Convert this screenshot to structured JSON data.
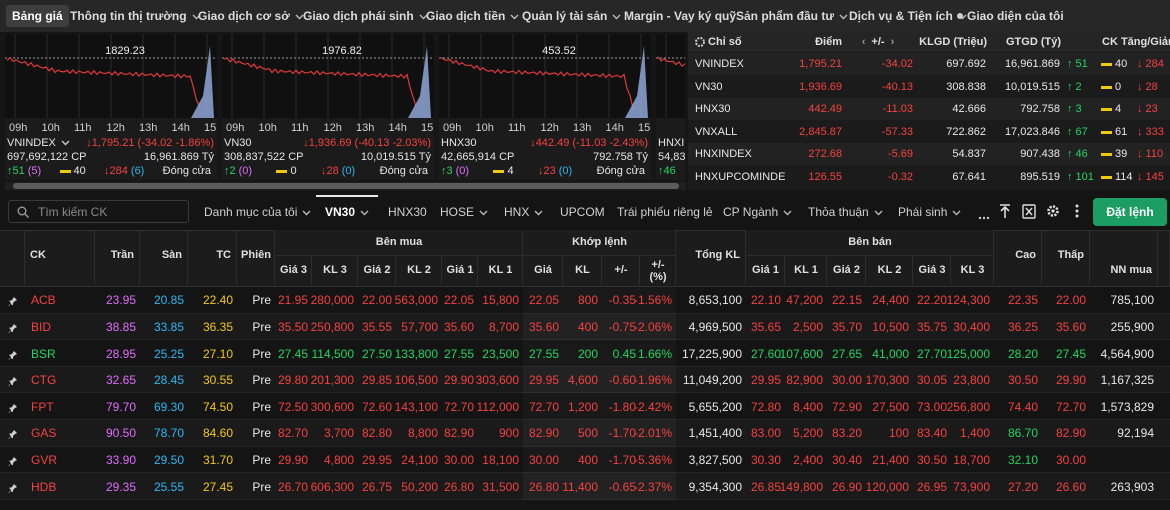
{
  "nav": {
    "active": 0,
    "items": [
      {
        "label": "Bảng giá"
      },
      {
        "label": "Thông tin thị trường",
        "menu": true
      },
      {
        "label": "Giao dịch cơ sở",
        "menu": true
      },
      {
        "label": "Giao dịch phái sinh",
        "menu": true
      },
      {
        "label": "Giao dịch tiền",
        "menu": true
      },
      {
        "label": "Quản lý tài sản",
        "menu": true
      },
      {
        "label": "Margin - Vay ký quỹ"
      },
      {
        "label": "Sản phẩm đầu tư",
        "menu": true
      },
      {
        "label": "Dịch vụ & Tiện ích",
        "menu": true
      },
      {
        "label": "Giao diện của tôi"
      }
    ]
  },
  "market_cards": {
    "times": [
      "09h",
      "10h",
      "11h",
      "12h",
      "13h",
      "14h",
      "15h"
    ],
    "cards": [
      {
        "name": "VNINDEX",
        "ref": "1829.23",
        "price": "↓1,795.21 (-34.02 -1.86%)",
        "volume": "697,692,122 CP",
        "value": "16,961.869 Tỷ",
        "up": "↑51",
        "up_ceil": "(5)",
        "flat": "40",
        "down": "↓284",
        "down_floor": "(6)",
        "status": "Đóng cửa"
      },
      {
        "name": "VN30",
        "ref": "1976.82",
        "price": "↓1,936.69 (-40.13 -2.03%)",
        "volume": "308,837,522 CP",
        "value": "10,019.515 Tỷ",
        "up": "↑2",
        "up_ceil": "(0)",
        "flat": "0",
        "down": "↓28",
        "down_floor": "(0)",
        "status": "Đóng cửa"
      },
      {
        "name": "HNX30",
        "ref": "453.52",
        "price": "↓442.49 (-11.03 -2.43%)",
        "volume": "42,665,914 CP",
        "value": "792.758 Tỷ",
        "up": "↑3",
        "up_ceil": "(0)",
        "flat": "4",
        "down": "↓23",
        "down_floor": "(0)",
        "status": "Đóng cửa"
      },
      {
        "name": "HNXI",
        "volume": "54,83",
        "up": "↑46"
      }
    ]
  },
  "index_table": {
    "headers": [
      "Chỉ số",
      "Điểm",
      "+/-",
      "KLGD (Triệu)",
      "GTGD (Tỷ)",
      "CK Tăng/Giảm"
    ],
    "rows": [
      [
        "VNINDEX",
        "1,795.21",
        "-34.02",
        "697.692",
        "16,961.869",
        "↑ 51",
        "40",
        "↓ 284"
      ],
      [
        "VN30",
        "1,936.69",
        "-40.13",
        "308.838",
        "10,019.515",
        "↑ 2",
        "0",
        "↓ 28"
      ],
      [
        "HNX30",
        "442.49",
        "-11.03",
        "42.666",
        "792.758",
        "↑ 3",
        "4",
        "↓ 23"
      ],
      [
        "VNXALL",
        "2,845.87",
        "-57.33",
        "722.862",
        "17,023.846",
        "↑ 67",
        "61",
        "↓ 333"
      ],
      [
        "HNXINDEX",
        "272.68",
        "-5.69",
        "54.837",
        "907.438",
        "↑ 46",
        "39",
        "↓ 110"
      ],
      [
        "HNXUPCOMINDE",
        "126.55",
        "-0.32",
        "67.641",
        "895.519",
        "↑ 101",
        "114",
        "↓ 145"
      ]
    ]
  },
  "tabs": {
    "search_placeholder": "Tìm kiếm CK",
    "active": 1,
    "items": [
      {
        "label": "Danh mục của tôi",
        "menu": true
      },
      {
        "label": "VN30",
        "menu": true
      },
      {
        "label": "HNX30"
      },
      {
        "label": "HOSE",
        "menu": true
      },
      {
        "label": "HNX",
        "menu": true
      },
      {
        "label": "UPCOM"
      },
      {
        "label": "Trái phiếu riêng lẻ"
      },
      {
        "label": "CP Ngành",
        "menu": true
      },
      {
        "label": "Thỏa thuận",
        "menu": true
      },
      {
        "label": "Phái sinh",
        "menu": true
      }
    ],
    "order_button": "Đặt lệnh"
  },
  "board": {
    "groups": [
      "Bên mua",
      "Khớp lệnh",
      "Bên bán"
    ],
    "columns": [
      "CK",
      "Trần",
      "Sàn",
      "TC",
      "Phiên",
      "Giá 3",
      "KL 3",
      "Giá 2",
      "KL 2",
      "Giá 1",
      "KL 1",
      "Giá",
      "KL",
      "+/-",
      "+/- (%)",
      "Tổng KL",
      "Giá 1",
      "KL 1",
      "Giá 2",
      "KL 2",
      "Giá 3",
      "KL 3",
      "Cao",
      "Thấp",
      "NN mua"
    ],
    "rows": [
      [
        "ACB",
        "23.95",
        "20.85",
        "22.40",
        "Pre",
        "21.95",
        "280,000",
        "22.00",
        "563,000",
        "22.05",
        "15,800",
        "22.05",
        "800",
        "-0.35",
        "-1.56%",
        "8,653,100",
        "22.10",
        "47,200",
        "22.15",
        "24,400",
        "22.20",
        "124,300",
        "22.35",
        "22.00",
        "785,100"
      ],
      [
        "BID",
        "38.85",
        "33.85",
        "36.35",
        "Pre",
        "35.50",
        "250,800",
        "35.55",
        "57,700",
        "35.60",
        "8,700",
        "35.60",
        "400",
        "-0.75",
        "-2.06%",
        "4,969,500",
        "35.65",
        "2,500",
        "35.70",
        "10,500",
        "35.75",
        "30,400",
        "36.25",
        "35.60",
        "255,900"
      ],
      [
        "BSR",
        "28.95",
        "25.25",
        "27.10",
        "Pre",
        "27.45",
        "114,500",
        "27.50",
        "133,800",
        "27.55",
        "23,500",
        "27.55",
        "200",
        "0.45",
        "1.66%",
        "17,225,900",
        "27.60",
        "107,600",
        "27.65",
        "41,000",
        "27.70",
        "125,000",
        "28.20",
        "27.45",
        "4,564,900"
      ],
      [
        "CTG",
        "32.65",
        "28.45",
        "30.55",
        "Pre",
        "29.80",
        "201,300",
        "29.85",
        "106,500",
        "29.90",
        "303,600",
        "29.95",
        "4,600",
        "-0.60",
        "-1.96%",
        "11,049,200",
        "29.95",
        "82,900",
        "30.00",
        "170,300",
        "30.05",
        "23,800",
        "30.50",
        "29.90",
        "1,167,325"
      ],
      [
        "FPT",
        "79.70",
        "69.30",
        "74.50",
        "Pre",
        "72.50",
        "300,600",
        "72.60",
        "143,100",
        "72.70",
        "112,000",
        "72.70",
        "1,200",
        "-1.80",
        "-2.42%",
        "5,655,200",
        "72.80",
        "8,400",
        "72.90",
        "27,500",
        "73.00",
        "256,800",
        "74.40",
        "72.70",
        "1,573,829"
      ],
      [
        "GAS",
        "90.50",
        "78.70",
        "84.60",
        "Pre",
        "82.70",
        "3,700",
        "82.80",
        "8,800",
        "82.90",
        "900",
        "82.90",
        "500",
        "-1.70",
        "-2.01%",
        "1,451,400",
        "83.00",
        "5,200",
        "83.20",
        "100",
        "83.40",
        "1,400",
        "86.70",
        "82.90",
        "92,194"
      ],
      [
        "GVR",
        "33.90",
        "29.50",
        "31.70",
        "Pre",
        "29.90",
        "4,800",
        "29.95",
        "24,100",
        "30.00",
        "18,100",
        "30.00",
        "400",
        "-1.70",
        "-5.36%",
        "3,827,500",
        "30.30",
        "2,400",
        "30.40",
        "21,400",
        "30.50",
        "18,700",
        "32.10",
        "30.00",
        null
      ],
      [
        "HDB",
        "29.35",
        "25.55",
        "27.45",
        "Pre",
        "26.70",
        "606,300",
        "26.75",
        "50,200",
        "26.80",
        "31,500",
        "26.80",
        "11,400",
        "-0.65",
        "-2.37%",
        "9,354,300",
        "26.85",
        "149,800",
        "26.90",
        "120,000",
        "26.95",
        "73,900",
        "27.20",
        "26.60",
        "263,903"
      ]
    ]
  }
}
